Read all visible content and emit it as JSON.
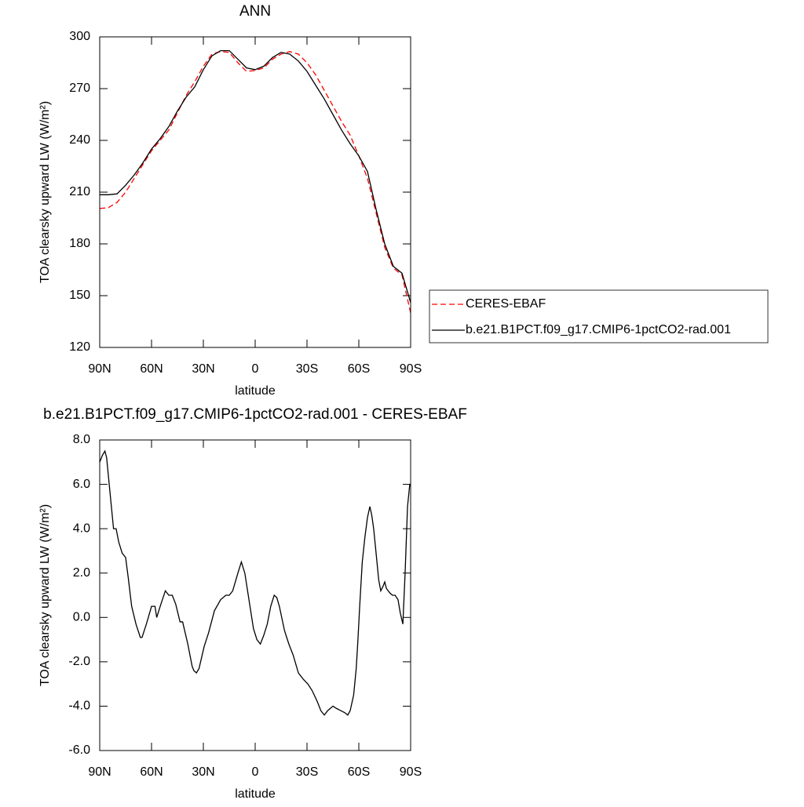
{
  "chart_data": [
    {
      "type": "line",
      "title": "ANN",
      "xlabel": "latitude",
      "ylabel": "TOA clearsky upward LW (W/m²)",
      "x": [
        90,
        85,
        80,
        75,
        70,
        65,
        60,
        55,
        50,
        45,
        40,
        35,
        30,
        25,
        20,
        15,
        10,
        5,
        0,
        -5,
        -10,
        -15,
        -20,
        -25,
        -30,
        -35,
        -40,
        -45,
        -50,
        -55,
        -60,
        -65,
        -70,
        -75,
        -80,
        -85,
        -90
      ],
      "series": [
        {
          "name": "CERES-EBAF",
          "color": "#ff0000",
          "dashed": true,
          "values": [
            200.5,
            201,
            204,
            210,
            218,
            226,
            234,
            240,
            246,
            256,
            266,
            274,
            283,
            290,
            291.5,
            291,
            285,
            280,
            280.5,
            282,
            287,
            290,
            291.5,
            290,
            285,
            278,
            269,
            260,
            251,
            243,
            231,
            218,
            198,
            178,
            166,
            162,
            140
          ]
        },
        {
          "name": "b.e21.B1PCT.f09_g17.CMIP6-1pctCO2-rad.001",
          "color": "#000000",
          "dashed": false,
          "values": [
            208.5,
            208.5,
            209,
            214,
            220,
            227,
            235,
            241,
            248,
            257,
            265,
            271,
            281,
            289,
            292,
            292,
            287,
            282,
            281,
            283,
            288,
            291,
            290,
            286,
            280,
            272,
            264,
            255,
            246,
            238,
            231,
            222,
            200,
            180,
            167,
            163,
            146
          ]
        }
      ],
      "xlim": [
        90,
        -90
      ],
      "xticks": [
        {
          "value": 90,
          "label": "90N"
        },
        {
          "value": 60,
          "label": "60N"
        },
        {
          "value": 30,
          "label": "30N"
        },
        0,
        {
          "value": -30,
          "label": "30S"
        },
        {
          "value": -60,
          "label": "60S"
        },
        {
          "value": -90,
          "label": "90S"
        }
      ],
      "ylim": [
        120,
        300
      ],
      "yticks": [
        120,
        150,
        180,
        210,
        240,
        270,
        300
      ],
      "legend": "right"
    },
    {
      "type": "line",
      "title": "b.e21.B1PCT.f09_g17.CMIP6-1pctCO2-rad.001 - CERES-EBAF",
      "xlabel": "latitude",
      "ylabel": "TOA clearsky upward LW (W/m²)",
      "x": [
        90,
        88.5,
        87,
        86,
        84.5,
        82,
        80.5,
        79,
        77,
        75,
        73.5,
        71.5,
        69,
        66.5,
        65.5,
        63,
        60,
        58,
        57,
        55,
        52,
        50,
        48,
        46,
        43.5,
        42,
        39,
        36.5,
        35.5,
        34,
        32.5,
        29.5,
        27,
        23.6,
        20,
        17,
        15,
        13,
        10,
        8,
        6,
        4,
        2,
        1,
        -1,
        -3,
        -5,
        -7,
        -9,
        -11,
        -12.5,
        -14,
        -17,
        -19.5,
        -22,
        -25,
        -28,
        -30.5,
        -33,
        -36,
        -38,
        -40,
        -42,
        -45,
        -47,
        -49.5,
        -52,
        -53.6,
        -55,
        -57,
        -58.5,
        -59.5,
        -60.5,
        -62,
        -63.5,
        -65,
        -66.4,
        -67.5,
        -68.6,
        -70.5,
        -71.5,
        -72.7,
        -74,
        -75,
        -76,
        -78,
        -79.5,
        -81,
        -82.7,
        -84,
        -85.5,
        -86.8,
        -88.2,
        -89.5,
        -90
      ],
      "series": [
        {
          "color": "#000000",
          "dashed": false,
          "values": [
            7.0,
            7.3,
            7.5,
            7.2,
            6.0,
            4.0,
            4.0,
            3.4,
            2.9,
            2.7,
            1.8,
            0.5,
            -0.3,
            -0.9,
            -0.9,
            -0.3,
            0.5,
            0.5,
            0.0,
            0.5,
            1.2,
            1.0,
            1.0,
            0.6,
            -0.2,
            -0.2,
            -1.2,
            -2.2,
            -2.4,
            -2.5,
            -2.3,
            -1.3,
            -0.7,
            0.3,
            0.8,
            1.0,
            1.0,
            1.2,
            2.0,
            2.5,
            2.0,
            1.0,
            0.0,
            -0.5,
            -1.0,
            -1.2,
            -0.8,
            -0.3,
            0.5,
            1.0,
            0.9,
            0.5,
            -0.6,
            -1.2,
            -1.7,
            -2.5,
            -2.8,
            -3.0,
            -3.3,
            -3.8,
            -4.2,
            -4.4,
            -4.2,
            -4.0,
            -4.1,
            -4.2,
            -4.3,
            -4.4,
            -4.2,
            -3.5,
            -2.3,
            -1.0,
            0.5,
            2.5,
            3.6,
            4.5,
            5.0,
            4.6,
            4.0,
            2.5,
            1.7,
            1.2,
            1.4,
            1.6,
            1.3,
            1.1,
            1.0,
            1.0,
            0.8,
            0.2,
            -0.3,
            2.0,
            5.0,
            6.0,
            6.0
          ]
        }
      ],
      "xlim": [
        90,
        -90
      ],
      "xticks": [
        {
          "value": 90,
          "label": "90N"
        },
        {
          "value": 60,
          "label": "60N"
        },
        {
          "value": 30,
          "label": "30N"
        },
        0,
        {
          "value": -30,
          "label": "30S"
        },
        {
          "value": -60,
          "label": "60S"
        },
        {
          "value": -90,
          "label": "90S"
        }
      ],
      "ylim": [
        -6,
        8
      ],
      "yticks": [
        {
          "value": -6,
          "label": "-6.0"
        },
        {
          "value": -4,
          "label": "-4.0"
        },
        {
          "value": -2,
          "label": "-2.0"
        },
        {
          "value": 0,
          "label": "0.0"
        },
        {
          "value": 2,
          "label": "2.0"
        },
        {
          "value": 4,
          "label": "4.0"
        },
        {
          "value": 6,
          "label": "6.0"
        },
        {
          "value": 8,
          "label": "8.0"
        }
      ]
    }
  ]
}
